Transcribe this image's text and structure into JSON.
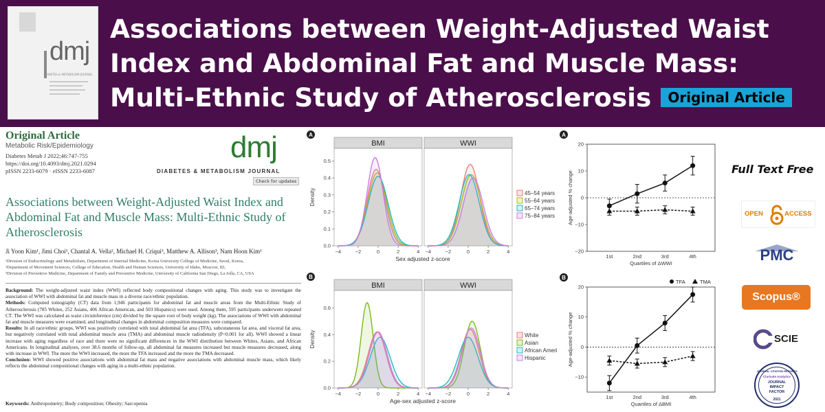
{
  "header": {
    "title": "Associations between Weight-Adjusted Waist Index and Abdominal Fat and Muscle Mass: Multi-Ethnic Study of Atherosclerosis",
    "badge": "Original Article",
    "bg_color": "#4a0f4a",
    "badge_color": "#1aa3d9"
  },
  "cover": {
    "logo": "dmj",
    "subtitle": "DIABETES & METABOLISM JOURNAL"
  },
  "article": {
    "type": "Original Article",
    "category": "Metabolic Risk/Epidemiology",
    "citation": "Diabetes Metab J 2022;46:747-755",
    "doi": "https://doi.org/10.4093/dmj.2021.0294",
    "issn": "pISSN 2233-6079 · eISSN 2233-6087",
    "journal_logo": "dmj",
    "journal_name": "DIABETES & METABOLISM JOURNAL",
    "check_updates": "Check for updates",
    "title": "Associations between Weight-Adjusted Waist Index and Abdominal Fat and Muscle Mass: Multi-Ethnic Study of Atherosclerosis",
    "authors": "Ji Yoon Kim¹, Jimi Choi¹, Chantal A. Vella², Michael H. Criqui³, Matthew A. Allison³, Nam Hoon Kim¹",
    "affiliations": [
      "¹Division of Endocrinology and Metabolism, Department of Internal Medicine, Korea University College of Medicine, Seoul, Korea,",
      "²Department of Movement Sciences, College of Education, Health and Human Sciences, University of Idaho, Moscow, ID,",
      "³Division of Preventive Medicine, Department of Family and Preventive Medicine, University of California San Diego, La Jolla, CA, USA"
    ],
    "background_label": "Background:",
    "background": "The weight-adjusted waist index (WWI) reflected body compositional changes with aging. This study was to investigate the association of WWI with abdominal fat and muscle mass in a diverse race/ethnic population.",
    "methods_label": "Methods:",
    "methods": "Computed tomography (CT) data from 1,946 participants for abdominal fat and muscle areas from the Multi-Ethnic Study of Atherosclerosis (785 Whites, 252 Asians, 406 African American, and 503 Hispanics) were used. Among them, 595 participants underwent repeated CT. The WWI was calculated as waist circumference (cm) divided by the square root of body weight (kg). The associations of WWI with abdominal fat and muscle measures were examined, and longitudinal changes in abdominal composition measures were compared.",
    "results_label": "Results:",
    "results": "In all race/ethnic groups, WWI was positively correlated with total abdominal fat area (TFA), subcutaneous fat area, and visceral fat area, but negatively correlated with total abdominal muscle area (TMA) and abdominal muscle radiodensity (P<0.001 for all). WWI showed a linear increase with aging regardless of race and there were no significant differences in the WWI distribution between Whites, Asians, and African Americans. In longitudinal analyses, over 38.6 months of follow-up, all abdominal fat measures increased but muscle measures decreased, along with increase in WWI. The more the WWI increased, the more the TFA increased and the more the TMA decreased.",
    "conclusion_label": "Conclusion:",
    "conclusion": "WWI showed positive associations with abdominal fat mass and negative associations with abdominal muscle mass, which likely reflects the abdominal compositional changes with aging in a multi-ethnic population.",
    "keywords_label": "Keywords:",
    "keywords": "Anthropometry; Body composition; Obesity; Sarcopenia"
  },
  "density_figs": [
    {
      "letter": "A",
      "panels": [
        "BMI",
        "WWI"
      ],
      "xlabel": "Sex adjusted z-score",
      "ylabel": "Density",
      "ticks_y": [
        "0.0",
        "0.1",
        "0.2",
        "0.3",
        "0.4",
        "0.5"
      ],
      "ticks_x": [
        "−4",
        "−2",
        "0",
        "2",
        "4"
      ],
      "legend": [
        "45–54 years",
        "55–64 years",
        "65–74 years",
        "75–84 years"
      ],
      "colors": [
        "#f07b7b",
        "#b8b814",
        "#25b8c4",
        "#c87ee8"
      ]
    },
    {
      "letter": "B",
      "panels": [
        "BMI",
        "WWI"
      ],
      "xlabel": "Age-sex adjusted z-score",
      "ylabel": "Density",
      "ticks_y": [
        "0.0",
        "0.2",
        "0.4",
        "0.6"
      ],
      "ticks_x": [
        "−4",
        "−2",
        "0",
        "2",
        "4"
      ],
      "legend": [
        "White",
        "Asian",
        "African American",
        "Hispanic"
      ],
      "colors": [
        "#f07b7b",
        "#7aba1a",
        "#25b8c4",
        "#c87ee8"
      ]
    }
  ],
  "chart_data": [
    {
      "type": "line",
      "letter": "A",
      "categories": [
        "1st",
        "2nd",
        "3rd",
        "4th"
      ],
      "xlabel": "Quartiles of ΔWWI",
      "ylabel": "Age-adjusted % change",
      "ylim": [
        -20,
        20
      ],
      "yticks": [
        "20",
        "10",
        "0",
        "−10",
        "−20"
      ],
      "series": [
        {
          "values": [
            -3,
            1.5,
            5.5,
            12
          ],
          "err": [
            2.5,
            3.5,
            3,
            3.5
          ],
          "marker": "circle",
          "dashed": false
        },
        {
          "values": [
            -5,
            -5,
            -4.5,
            -5
          ],
          "err": [
            1.5,
            1.5,
            1.5,
            1.5
          ],
          "marker": "triangle",
          "dashed": true
        }
      ]
    },
    {
      "type": "line",
      "letter": "B",
      "categories": [
        "1st",
        "2nd",
        "3rd",
        "4th"
      ],
      "xlabel": "Quartiles of ΔBMI",
      "ylabel": "Age-adjusted % change",
      "ylim": [
        -15,
        20
      ],
      "yticks": [
        "20",
        "10",
        "0",
        "−10"
      ],
      "legend": [
        "TFA",
        "TMA"
      ],
      "series": [
        {
          "name": "TFA",
          "values": [
            -12,
            0.5,
            8,
            17.5
          ],
          "err": [
            2.5,
            2.5,
            2.5,
            2.5
          ],
          "marker": "circle",
          "dashed": false
        },
        {
          "name": "TMA",
          "values": [
            -4.5,
            -5.5,
            -5,
            -3
          ],
          "err": [
            1.5,
            1.5,
            1.5,
            1.5
          ],
          "marker": "triangle",
          "dashed": true
        }
      ]
    }
  ],
  "sidebar": {
    "full_text": "Full Text Free",
    "open_access": [
      "OPEN",
      "ACCESS"
    ],
    "pmc": "PMC",
    "scopus": "Scopus®",
    "scie": "SCIE",
    "jif": [
      "JOURNAL",
      "IMPACT",
      "FACTOR"
    ],
    "jif_top": "JOURNAL CITATION REPORTS",
    "jif_brand": "Clarivate Analytics",
    "jif_year": "2021"
  }
}
